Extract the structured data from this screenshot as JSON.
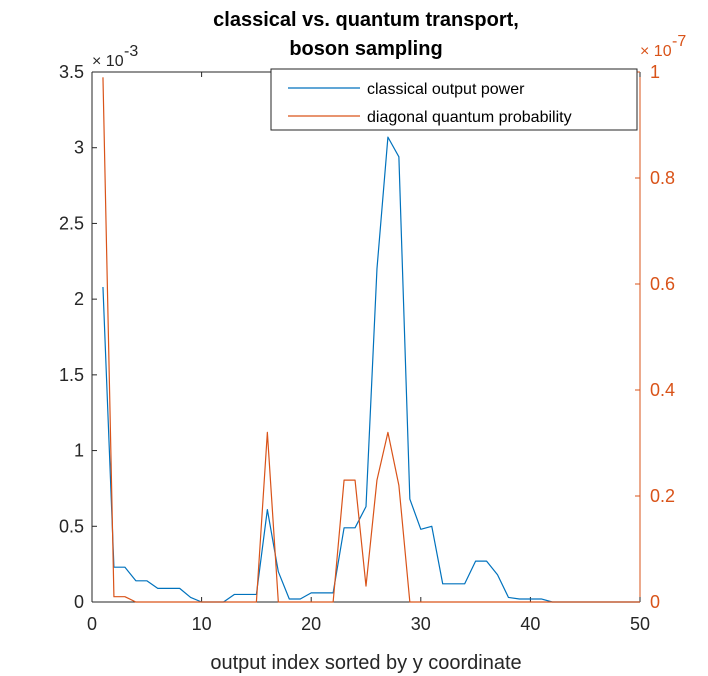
{
  "chart_data": {
    "type": "line",
    "title": [
      "classical vs. quantum transport,",
      "boson sampling"
    ],
    "xlabel": "output index sorted by y coordinate",
    "ylabel_left": "",
    "ylabel_right": "",
    "xlim": [
      0,
      50
    ],
    "ylim_left": [
      0,
      3.5
    ],
    "ylim_right": [
      0,
      1
    ],
    "x_ticks": [
      0,
      10,
      20,
      30,
      40,
      50
    ],
    "y_left_ticks": [
      0,
      0.5,
      1,
      1.5,
      2,
      2.5,
      3,
      3.5
    ],
    "y_left_tick_labels": [
      "0",
      "0.5",
      "1",
      "1.5",
      "2",
      "2.5",
      "3",
      "3.5"
    ],
    "y_right_ticks": [
      0,
      0.2,
      0.4,
      0.6,
      0.8,
      1
    ],
    "y_right_tick_labels": [
      "0",
      "0.2",
      "0.4",
      "0.6",
      "0.8",
      "1"
    ],
    "left_exponent_label": "× 10",
    "left_exponent_power": "-3",
    "right_exponent_label": "× 10",
    "right_exponent_power": "-7",
    "grid": false,
    "legend_position": "top-right",
    "x": [
      1,
      2,
      3,
      4,
      5,
      6,
      7,
      8,
      9,
      10,
      11,
      12,
      13,
      14,
      15,
      16,
      17,
      18,
      19,
      20,
      21,
      22,
      23,
      24,
      25,
      26,
      27,
      28,
      29,
      30,
      31,
      32,
      33,
      34,
      35,
      36,
      37,
      38,
      39,
      40,
      41,
      42,
      43,
      44,
      45,
      46,
      47,
      48,
      49,
      50
    ],
    "series": [
      {
        "name": "classical output power",
        "axis": "left",
        "color": "#0072BD",
        "values": [
          2.08,
          0.23,
          0.23,
          0.14,
          0.14,
          0.09,
          0.09,
          0.09,
          0.03,
          0.0,
          0.0,
          0.0,
          0.05,
          0.05,
          0.05,
          0.61,
          0.2,
          0.02,
          0.02,
          0.06,
          0.06,
          0.06,
          0.49,
          0.49,
          0.63,
          2.2,
          3.07,
          2.94,
          0.68,
          0.48,
          0.5,
          0.12,
          0.12,
          0.12,
          0.27,
          0.27,
          0.18,
          0.03,
          0.02,
          0.02,
          0.02,
          0.0,
          0.0,
          0.0,
          0.0,
          0.0,
          0.0,
          0.0,
          0.0,
          0.0
        ]
      },
      {
        "name": "diagonal quantum probability",
        "axis": "right",
        "color": "#D95319",
        "values": [
          0.99,
          0.01,
          0.01,
          0.0,
          0.0,
          0.0,
          0.0,
          0.0,
          0.0,
          0.0,
          0.0,
          0.0,
          0.0,
          0.0,
          0.0,
          0.32,
          0.0,
          0.0,
          0.0,
          0.0,
          0.0,
          0.0,
          0.23,
          0.23,
          0.03,
          0.23,
          0.32,
          0.22,
          0.0,
          0.0,
          0.0,
          0.0,
          0.0,
          0.0,
          0.0,
          0.0,
          0.0,
          0.0,
          0.0,
          0.0,
          0.0,
          0.0,
          0.0,
          0.0,
          0.0,
          0.0,
          0.0,
          0.0,
          0.0,
          0.0
        ]
      }
    ]
  }
}
